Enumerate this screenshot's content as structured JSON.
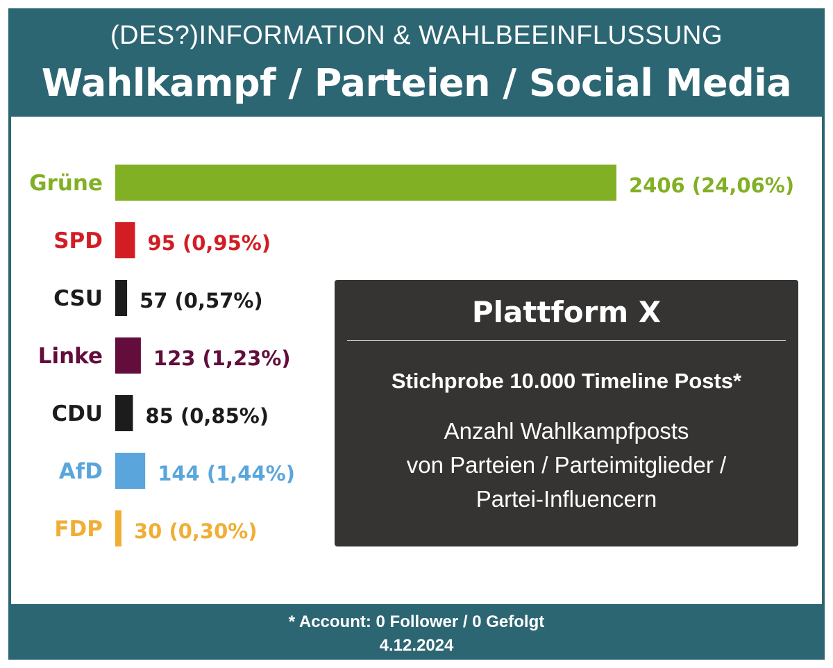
{
  "header": {
    "subtitle": "(DES?)INFORMATION & WAHLBEEINFLUSSUNG",
    "title": "Wahlkampf / Parteien / Social Media"
  },
  "chart_data": {
    "type": "bar",
    "orientation": "horizontal",
    "title": "Wahlkampf / Parteien / Social Media",
    "xlabel": "",
    "ylabel": "",
    "xlim": [
      0,
      2406
    ],
    "grid": false,
    "categories": [
      "Grüne",
      "SPD",
      "CSU",
      "Linke",
      "CDU",
      "AfD",
      "FDP"
    ],
    "values": [
      2406,
      95,
      57,
      123,
      85,
      144,
      30
    ],
    "labels": [
      "2406 (24,06%)",
      "95 (0,95%)",
      "57 (0,57%)",
      "123 (1,23%)",
      "85 (0,85%)",
      "144 (1,44%)",
      "30 (0,30%)"
    ],
    "colors": [
      "#82b024",
      "#d21d25",
      "#1c1c1c",
      "#620d3b",
      "#1c1c1c",
      "#5aa6dc",
      "#f0ae35"
    ]
  },
  "info_box": {
    "title": "Plattform X",
    "sample": "Stichprobe 10.000 Timeline Posts*",
    "desc_lines": [
      "Anzahl Wahlkampfposts",
      "von Parteien / Parteimitglieder /",
      "Partei-Influencern"
    ]
  },
  "footer": {
    "note": "* Account: 0 Follower / 0 Gefolgt",
    "date": "4.12.2024"
  },
  "colors": {
    "frame": "#2d6673",
    "info_box_bg": "#353433"
  }
}
